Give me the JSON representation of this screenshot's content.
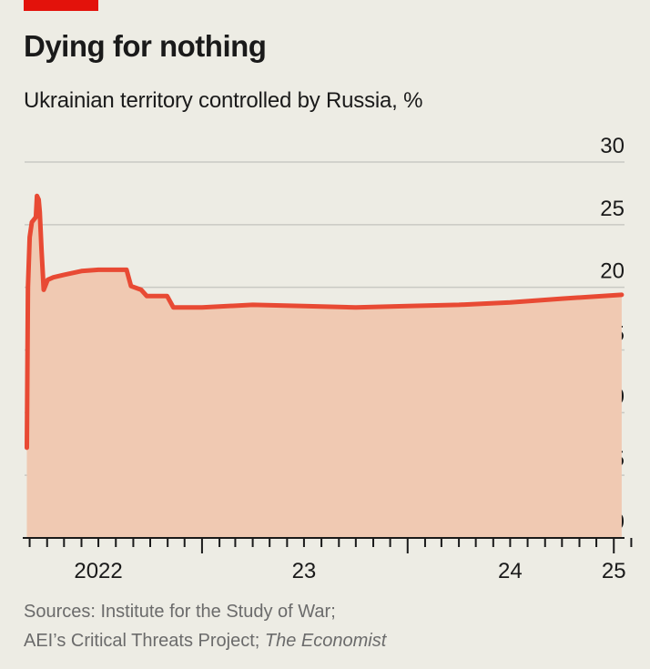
{
  "header": {
    "brand_color": "#e3120b",
    "title": "Dying for nothing",
    "subtitle": "Ukrainian territory controlled by Russia, %"
  },
  "source": {
    "line1": "Sources: Institute for the Study of War;",
    "line2_prefix": "AEI’s Critical Threats Project; ",
    "line2_italic": "The Economist"
  },
  "chart_data": {
    "type": "area",
    "title": "Dying for nothing",
    "subtitle": "Ukrainian territory controlled by Russia, %",
    "xlabel": "",
    "ylabel": "",
    "ylim": [
      0,
      30
    ],
    "y_ticks": [
      0,
      5,
      10,
      15,
      20,
      25,
      30
    ],
    "y_tick_labels": [
      "0",
      "5",
      "10",
      "15",
      "20",
      "25",
      "30"
    ],
    "y_axis_side": "right",
    "xlim": [
      "2022-02-20",
      "2025-01-20"
    ],
    "x_tick_labels": [
      {
        "label": "2022",
        "date": "2022-07-01"
      },
      {
        "label": "23",
        "date": "2023-07-01"
      },
      {
        "label": "24",
        "date": "2024-07-01"
      },
      {
        "label": "25",
        "date": "2025-01-01"
      }
    ],
    "grid": true,
    "legend": "none",
    "line_color": "#e84a34",
    "fill_color": "#f0c9b2",
    "series": [
      {
        "name": "",
        "points": [
          [
            "2022-02-24",
            7.2
          ],
          [
            "2022-02-26",
            20.0
          ],
          [
            "2022-03-01",
            24.0
          ],
          [
            "2022-03-05",
            25.2
          ],
          [
            "2022-03-12",
            25.6
          ],
          [
            "2022-03-14",
            27.3
          ],
          [
            "2022-03-17",
            27.0
          ],
          [
            "2022-03-19",
            26.0
          ],
          [
            "2022-03-22",
            23.0
          ],
          [
            "2022-03-26",
            19.8
          ],
          [
            "2022-04-02",
            20.6
          ],
          [
            "2022-04-12",
            20.8
          ],
          [
            "2022-05-01",
            21.0
          ],
          [
            "2022-06-01",
            21.3
          ],
          [
            "2022-07-01",
            21.4
          ],
          [
            "2022-08-20",
            21.4
          ],
          [
            "2022-08-28",
            20.1
          ],
          [
            "2022-09-15",
            19.8
          ],
          [
            "2022-09-25",
            19.3
          ],
          [
            "2022-10-31",
            19.3
          ],
          [
            "2022-11-11",
            18.4
          ],
          [
            "2023-01-01",
            18.4
          ],
          [
            "2023-04-01",
            18.6
          ],
          [
            "2023-07-01",
            18.5
          ],
          [
            "2023-10-01",
            18.4
          ],
          [
            "2024-01-01",
            18.5
          ],
          [
            "2024-04-01",
            18.6
          ],
          [
            "2024-07-01",
            18.8
          ],
          [
            "2024-10-01",
            19.1
          ],
          [
            "2025-01-15",
            19.4
          ]
        ]
      }
    ]
  }
}
